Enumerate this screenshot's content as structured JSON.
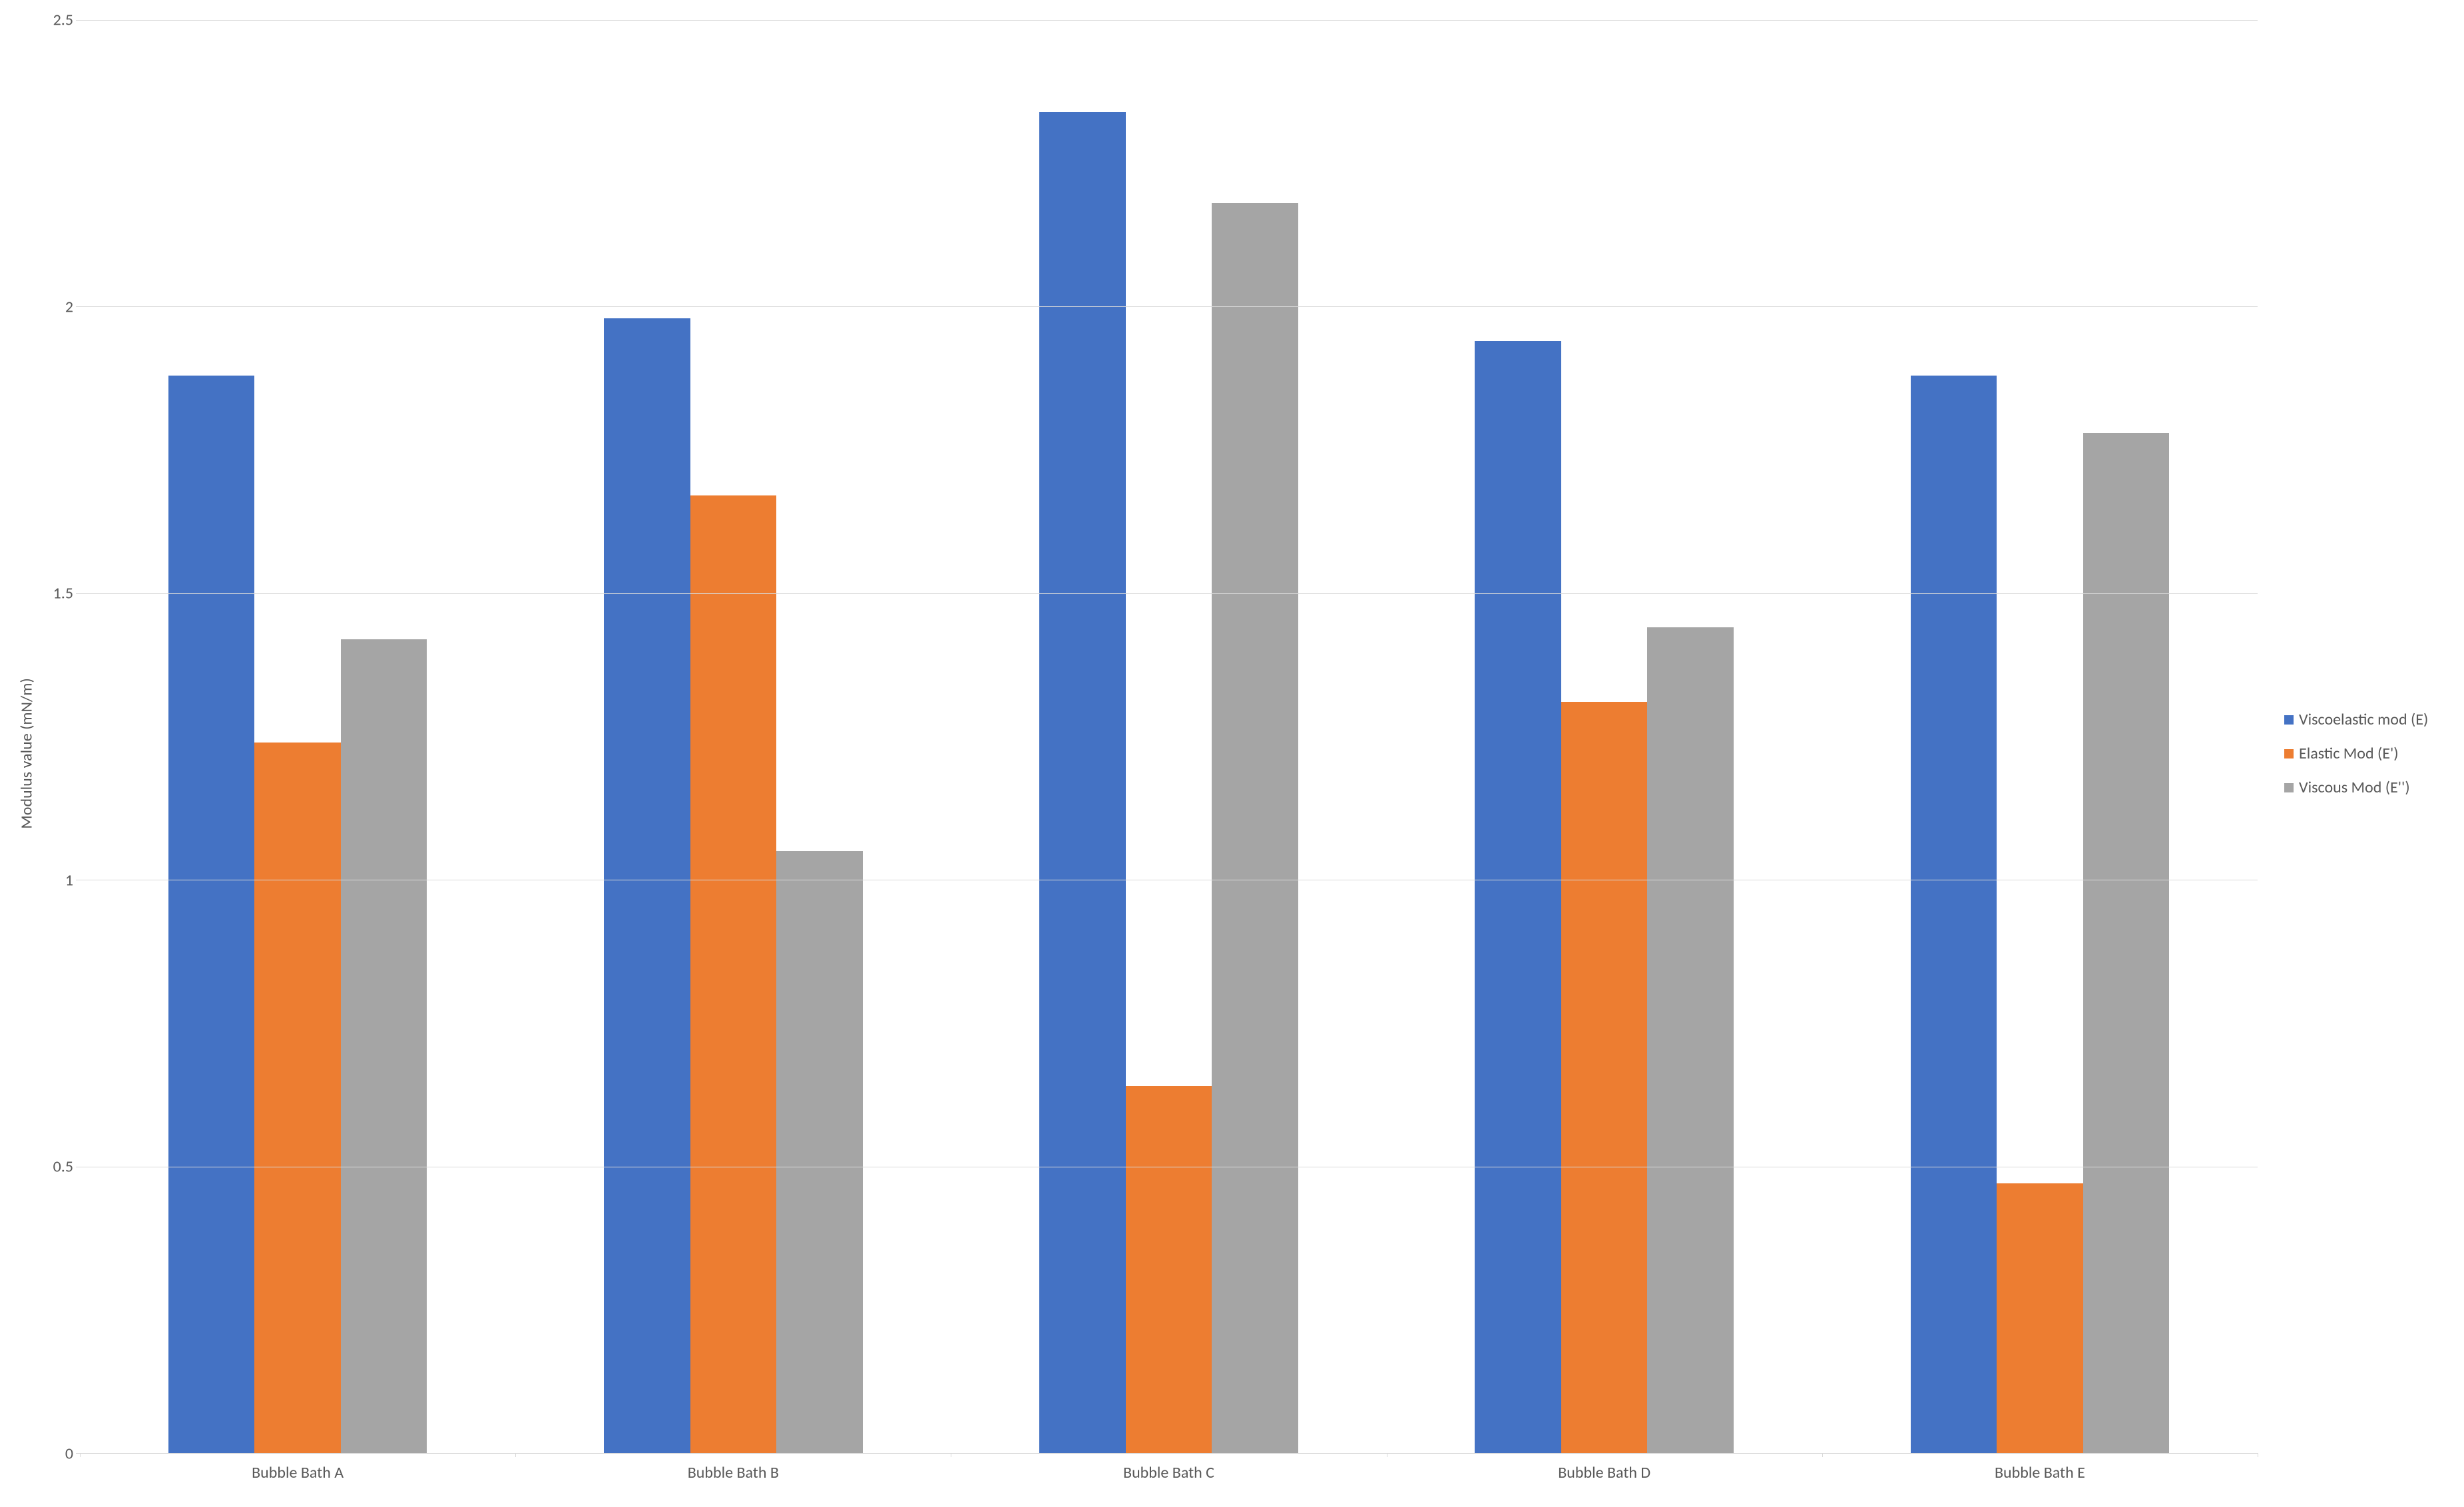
{
  "chart": {
    "type": "bar",
    "categories": [
      "Bubble Bath A",
      "Bubble Bath B",
      "Bubble Bath C",
      "Bubble Bath D",
      "Bubble Bath E"
    ],
    "series": [
      {
        "name": "Viscoelastic mod (E)",
        "color": "#4472c4",
        "values": [
          1.88,
          1.98,
          2.34,
          1.94,
          1.88
        ]
      },
      {
        "name": "Elastic Mod (E')",
        "color": "#ed7d31",
        "values": [
          1.24,
          1.67,
          0.64,
          1.31,
          0.47
        ]
      },
      {
        "name": "Viscous Mod (E'')",
        "color": "#a5a5a5",
        "values": [
          1.42,
          1.05,
          2.18,
          1.44,
          1.78
        ]
      }
    ],
    "ylabel": "Modulus value (mN/m)",
    "ylim": [
      0,
      2.5
    ],
    "ytick_step": 0.5,
    "yticks": [
      "0",
      "0.5",
      "1",
      "1.5",
      "2",
      "2.5"
    ],
    "background_color": "#ffffff",
    "grid_color": "#d9d9d9",
    "text_color": "#595959",
    "label_fontsize": 24,
    "tick_fontsize": 24,
    "legend_fontsize": 24,
    "bar_group_padding_pct": 4
  }
}
